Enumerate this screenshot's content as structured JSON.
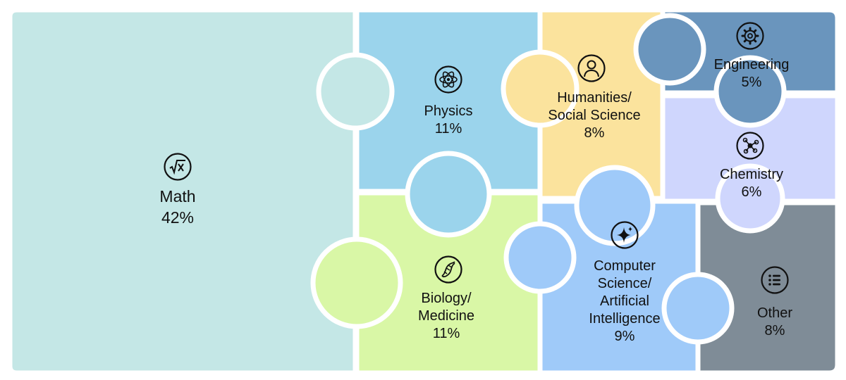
{
  "chart_data": {
    "type": "treemap",
    "categories": [
      {
        "key": "math",
        "name": "Math",
        "value_label": "42%",
        "value": 42,
        "color": "#c4e7e6",
        "icon": "square-root-icon"
      },
      {
        "key": "physics",
        "name": "Physics",
        "value_label": "11%",
        "value": 11,
        "color": "#9bd4ec",
        "icon": "atom-icon"
      },
      {
        "key": "humanities",
        "name_lines": [
          "Humanities/",
          "Social Science"
        ],
        "value_label": "8%",
        "value": 8,
        "color": "#fbe39d",
        "icon": "person-icon"
      },
      {
        "key": "engineering",
        "name": "Engineering",
        "value_label": "5%",
        "value": 5,
        "color": "#6a95bd",
        "icon": "gear-icon"
      },
      {
        "key": "chemistry",
        "name": "Chemistry",
        "value_label": "6%",
        "value": 6,
        "color": "#cfd6fd",
        "icon": "molecule-icon"
      },
      {
        "key": "biology",
        "name_lines": [
          "Biology/",
          "Medicine"
        ],
        "value_label": "11%",
        "value": 11,
        "color": "#d9f7a6",
        "icon": "dna-icon"
      },
      {
        "key": "cs",
        "name_lines": [
          "Computer",
          "Science/",
          "Artificial",
          "Intelligence"
        ],
        "value_label": "9%",
        "value": 9,
        "color": "#9fcaf9",
        "icon": "sparkle-icon"
      },
      {
        "key": "other",
        "name": "Other",
        "value_label": "8%",
        "value": 8,
        "color": "#7f8c97",
        "icon": "list-icon"
      }
    ]
  }
}
